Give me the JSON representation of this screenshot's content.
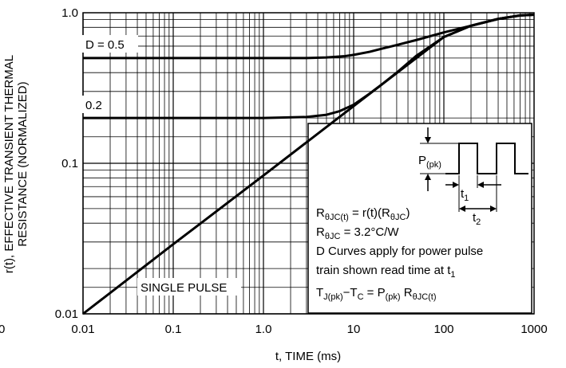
{
  "chart_data": {
    "type": "line",
    "x_scale": "log",
    "y_scale": "log",
    "xlim": [
      0.01,
      1000
    ],
    "ylim": [
      0.01,
      1.0
    ],
    "x_ticks": [
      {
        "value": 0.01,
        "label": "0.01"
      },
      {
        "value": 0.1,
        "label": "0.1"
      },
      {
        "value": 1,
        "label": "1.0"
      },
      {
        "value": 10,
        "label": "10"
      },
      {
        "value": 100,
        "label": "100"
      },
      {
        "value": 1000,
        "label": "1000"
      }
    ],
    "y_ticks": [
      {
        "value": 0.01,
        "label": "0.01"
      },
      {
        "value": 0.1,
        "label": "0.1"
      },
      {
        "value": 1.0,
        "label": "1.0"
      }
    ],
    "xlabel": "t, TIME (ms)",
    "ylabel_line1": "r(t), EFFECTIVE TRANSIENT THERMAL",
    "ylabel_line2": "RESISTANCE (NORMALIZED)",
    "grid": true,
    "series": [
      {
        "name": "D = 0.5",
        "x": [
          0.01,
          1,
          3,
          5,
          8,
          10,
          15,
          20,
          30,
          50,
          100,
          200,
          400,
          700,
          1000
        ],
        "y": [
          0.5,
          0.5,
          0.5,
          0.505,
          0.515,
          0.525,
          0.55,
          0.575,
          0.61,
          0.66,
          0.74,
          0.82,
          0.91,
          0.96,
          0.97
        ]
      },
      {
        "name": "0.2",
        "x": [
          0.01,
          1,
          3,
          5,
          7,
          10,
          15,
          20,
          30,
          50,
          100,
          200,
          400,
          700,
          1000
        ],
        "y": [
          0.2,
          0.2,
          0.203,
          0.21,
          0.222,
          0.245,
          0.29,
          0.33,
          0.4,
          0.52,
          0.69,
          0.82,
          0.91,
          0.96,
          0.97
        ]
      },
      {
        "name": "SINGLE PULSE",
        "x": [
          0.01,
          0.1,
          1,
          10,
          100,
          200,
          400,
          700,
          1000
        ],
        "y": [
          0.01,
          0.029,
          0.083,
          0.24,
          0.69,
          0.82,
          0.91,
          0.96,
          0.97
        ]
      }
    ],
    "curve_labels": [
      {
        "text": "D = 0.5"
      },
      {
        "text": "0.2"
      },
      {
        "text": "SINGLE PULSE"
      }
    ],
    "stray_tick_label": "0",
    "inset": {
      "pulse_label": "P",
      "pulse_label_sub": "(pk)",
      "t1": "t",
      "t1_sub": "1",
      "t2": "t",
      "t2_sub": "2",
      "eq1_parts": [
        "R",
        "θJC(t)",
        " = r(t)(R",
        "θJC",
        ")"
      ],
      "eq2_parts": [
        "R",
        "θJC",
        " = 3.2°C/W"
      ],
      "note_line1": "D Curves apply for power pulse",
      "note_line2_parts": [
        "train shown read time at t",
        "1"
      ],
      "eq3_parts": [
        "T",
        "J(pk)",
        "−T",
        "C",
        " = P",
        "(pk)",
        " R",
        "θJC(t)"
      ]
    }
  }
}
